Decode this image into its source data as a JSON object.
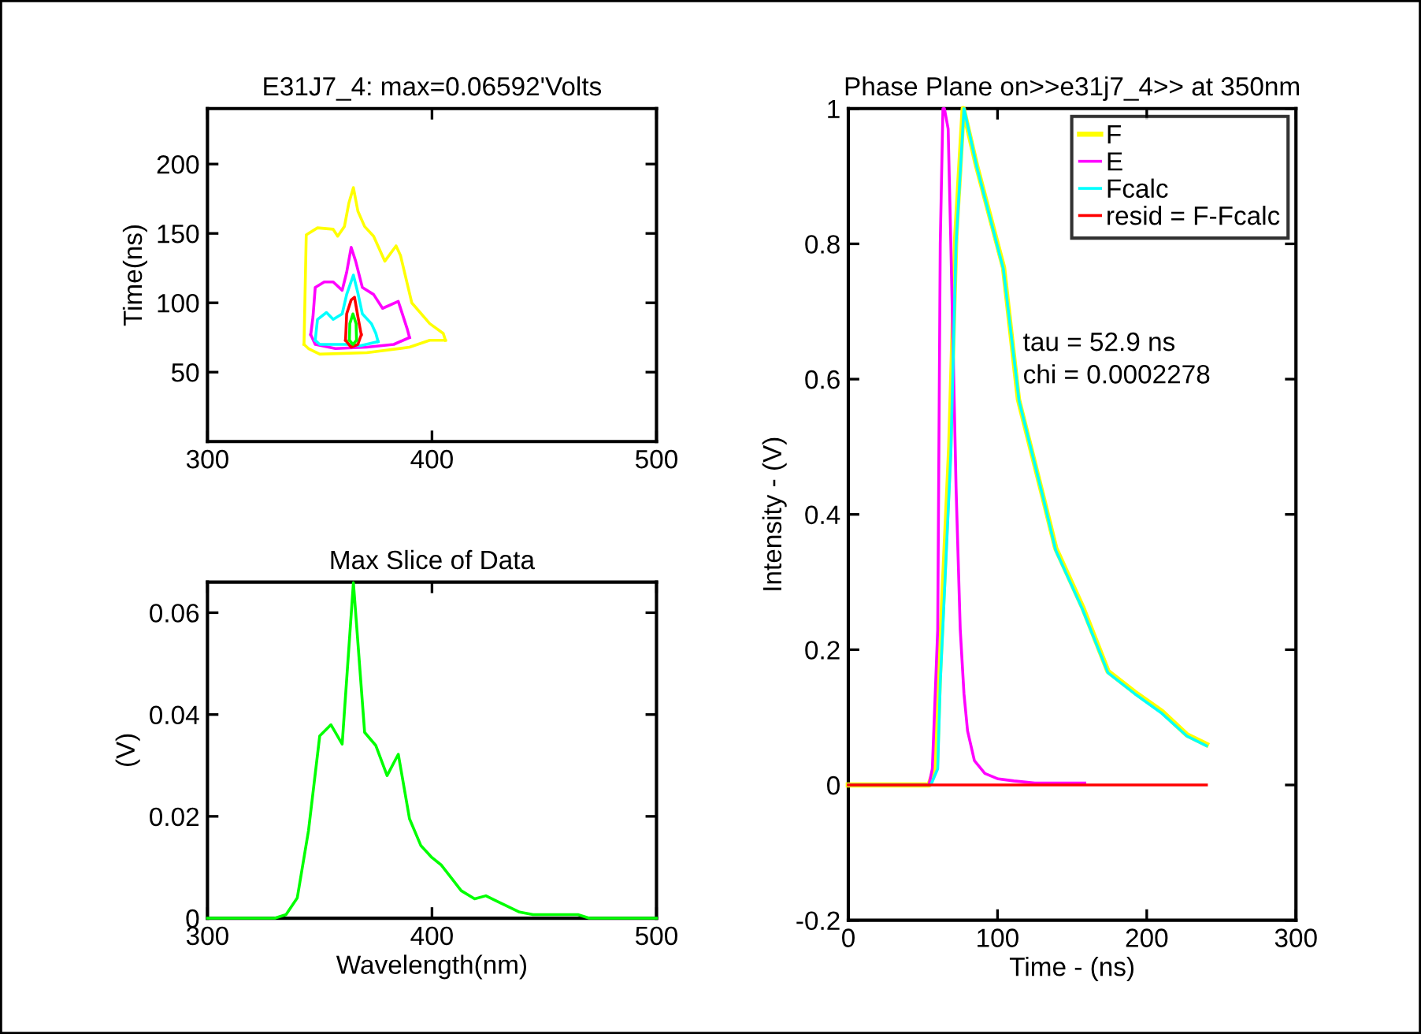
{
  "chart_data": [
    {
      "type": "line",
      "title": "E31J7_4: max=0.06592'Volts",
      "ylabel": "Time(ns)",
      "xlim": [
        300,
        500
      ],
      "xticks": [
        300,
        400,
        500
      ],
      "ylim": [
        0,
        240
      ],
      "yticks": [
        50,
        100,
        150,
        200
      ],
      "grid": false,
      "legend": false,
      "series": [
        {
          "color": "#ffff00",
          "x": [
            343,
            344,
            349,
            356,
            358,
            361,
            363,
            365,
            367,
            370,
            374,
            379,
            384,
            386,
            391,
            399,
            405,
            406
          ],
          "values": [
            70,
            149,
            154,
            153,
            148,
            155,
            172,
            183,
            166,
            155,
            148,
            130,
            141,
            134,
            100,
            85,
            78,
            73
          ]
        },
        {
          "color": "#ffff00",
          "x": [
            343,
            345,
            350,
            371,
            390,
            399,
            406
          ],
          "values": [
            70,
            67,
            63,
            64,
            68,
            73,
            73
          ]
        },
        {
          "color": "#ff00ff",
          "x": [
            346,
            347,
            348,
            352,
            356,
            360,
            362,
            364,
            366,
            369,
            374,
            378,
            385,
            389,
            390
          ],
          "values": [
            77,
            90,
            111,
            115,
            115,
            109,
            122,
            140,
            130,
            111,
            106,
            96,
            101,
            81,
            75
          ]
        },
        {
          "color": "#ff00ff",
          "x": [
            346,
            348,
            357,
            371,
            383,
            390
          ],
          "values": [
            77,
            70,
            67,
            68,
            70,
            75
          ]
        },
        {
          "color": "#00ffff",
          "x": [
            348,
            349,
            353,
            356,
            360,
            362,
            365,
            367,
            369,
            373,
            375,
            376
          ],
          "values": [
            73,
            88,
            93,
            88,
            92,
            106,
            120,
            107,
            92,
            85,
            78,
            72
          ]
        },
        {
          "color": "#00ffff",
          "x": [
            348,
            350,
            355,
            362,
            368,
            376
          ],
          "values": [
            73,
            70,
            70,
            70,
            69,
            72
          ]
        },
        {
          "color": "#ff0000",
          "x": [
            361.5,
            362,
            364,
            365.5,
            367,
            368.5
          ],
          "values": [
            73,
            92,
            102,
            104,
            90,
            77
          ]
        },
        {
          "color": "#ff0000",
          "x": [
            361.5,
            364,
            367,
            368.5
          ],
          "values": [
            73,
            68,
            70,
            77
          ]
        },
        {
          "color": "#00ff00",
          "x": [
            363.2,
            363.4,
            364.8,
            366.2,
            366.4
          ],
          "values": [
            73,
            85,
            92,
            85,
            73
          ]
        },
        {
          "color": "#00ff00",
          "x": [
            363.2,
            364.8,
            366.4
          ],
          "values": [
            73,
            70,
            73
          ]
        }
      ]
    },
    {
      "type": "line",
      "title": "Max Slice of Data",
      "xlabel": "Wavelength(nm)",
      "ylabel": "(V)",
      "xlim": [
        300,
        500
      ],
      "xticks": [
        300,
        400,
        500
      ],
      "ylim": [
        0,
        0.066
      ],
      "yticks": [
        0,
        0.02,
        0.04,
        0.06
      ],
      "grid": false,
      "legend": false,
      "series": [
        {
          "color": "#00ff00",
          "x": [
            300,
            330,
            335,
            340,
            345,
            350,
            355,
            360,
            365,
            370,
            375,
            380,
            385,
            390,
            395,
            400,
            404,
            409,
            413,
            419,
            424,
            429,
            439,
            445,
            465,
            470,
            500
          ],
          "values": [
            0,
            0,
            0.0007,
            0.004,
            0.0172,
            0.0358,
            0.038,
            0.0342,
            0.0659,
            0.0365,
            0.0339,
            0.028,
            0.0322,
            0.0195,
            0.0143,
            0.0119,
            0.0105,
            0.0077,
            0.0054,
            0.0038,
            0.0044,
            0.0033,
            0.0012,
            0.0007,
            0.0007,
            0,
            0
          ]
        }
      ]
    },
    {
      "type": "line",
      "title": "Phase Plane on>>e31j7_4>> at 350nm",
      "xlabel": "Time - (ns)",
      "ylabel": "Intensity - (V)",
      "xlim": [
        0,
        300
      ],
      "xticks": [
        0,
        100,
        200,
        300
      ],
      "ylim": [
        -0.2,
        1
      ],
      "yticks": [
        -0.2,
        0,
        0.2,
        0.4,
        0.6,
        0.8,
        1
      ],
      "grid": false,
      "legend": "top right",
      "annotations": [
        "tau = 52.9 ns",
        "chi = 0.0002278"
      ],
      "series": [
        {
          "name": "F",
          "color": "#ffff00",
          "x": [
            0,
            54,
            59,
            61,
            68,
            72,
            77,
            86,
            104,
            114,
            130,
            139,
            157,
            174,
            192,
            210,
            227,
            240
          ],
          "values": [
            0,
            0,
            0.03,
            0.16,
            0.5,
            0.81,
            1,
            0.915,
            0.765,
            0.57,
            0.43,
            0.35,
            0.263,
            0.168,
            0.137,
            0.109,
            0.074,
            0.06
          ]
        },
        {
          "name": "E",
          "color": "#ff00ff",
          "x": [
            0,
            54,
            56.3,
            59.9,
            61.6,
            63.4,
            64.4,
            66.9,
            68.7,
            72.2,
            75,
            77.5,
            79.9,
            84.5,
            91.5,
            100.4,
            111,
            125,
            158.5
          ],
          "values": [
            0,
            0,
            0.024,
            0.23,
            0.8,
            1,
            1,
            0.97,
            0.8,
            0.44,
            0.23,
            0.135,
            0.08,
            0.036,
            0.017,
            0.009,
            0.006,
            0.003,
            0.003
          ]
        },
        {
          "name": "Fcalc",
          "color": "#00ffff",
          "x": [
            0,
            55.3,
            59.9,
            61.6,
            68.7,
            72.2,
            77.5,
            86.3,
            103.9,
            114.4,
            130.3,
            139,
            156.7,
            174,
            191.9,
            209.5,
            227.1,
            240
          ],
          "values": [
            0,
            0,
            0.024,
            0.15,
            0.49,
            0.8,
            1,
            0.912,
            0.763,
            0.568,
            0.427,
            0.347,
            0.261,
            0.166,
            0.135,
            0.107,
            0.072,
            0.058
          ]
        },
        {
          "name": "resid = F-Fcalc",
          "color": "#ff0000",
          "x": [
            0,
            240
          ],
          "values": [
            0,
            0
          ]
        }
      ]
    }
  ]
}
